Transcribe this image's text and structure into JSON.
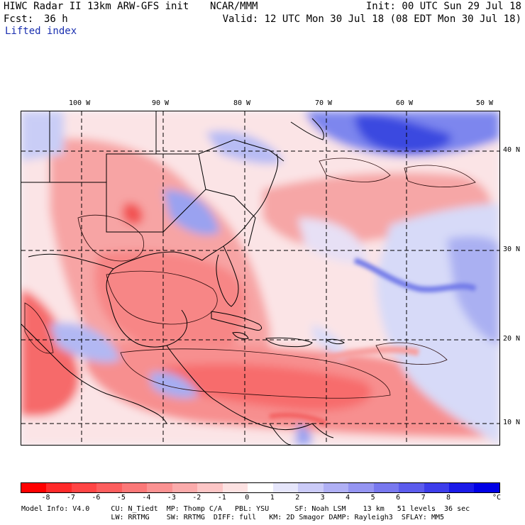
{
  "header": {
    "title": "HIWC Radar II 13km ARW-GFS init",
    "org": "NCAR/MMM",
    "init": "Init: 00 UTC Sun 29 Jul 18",
    "fcst_label": "Fcst:",
    "fcst_value": "36 h",
    "valid": "Valid: 12 UTC Mon 30 Jul 18 (08 EDT Mon 30 Jul 18)",
    "field": "Lifted index"
  },
  "map": {
    "projection": "lat-lon",
    "lon_ticks": [
      "100 W",
      "90 W",
      "80 W",
      "70 W",
      "60 W",
      "50 W"
    ],
    "lat_ticks": [
      "40 N",
      "30 N",
      "20 N",
      "10 N"
    ],
    "colors": {
      "negative_dark": "#ff3c3c",
      "negative_mid": "#f77f7f",
      "negative_light": "#fbc8c8",
      "near_zero": "#fbecef",
      "positive_light": "#d4d7fb",
      "positive_mid": "#8b92f0",
      "positive_dark": "#2b2fe0"
    }
  },
  "colorbar": {
    "unit": "°C",
    "labels": [
      "-8",
      "-7",
      "-6",
      "-5",
      "-4",
      "-3",
      "-2",
      "-1",
      "0",
      "1",
      "2",
      "3",
      "4",
      "5",
      "6",
      "7",
      "8"
    ],
    "colors": [
      "#ff0000",
      "#ff2a2a",
      "#ff4545",
      "#fd5e5e",
      "#fb7878",
      "#fb9292",
      "#fbabab",
      "#fdc6c6",
      "#fde2e2",
      "#ffffff",
      "#e6e6fb",
      "#cbcbf8",
      "#b0b0f5",
      "#9595f2",
      "#7878ef",
      "#5c5ced",
      "#3d3deb",
      "#1a1ae8",
      "#0000e6"
    ]
  },
  "model_info": {
    "line1": "Model Info: V4.0     CU: N_Tiedt  MP: Thomp C/A   PBL: YSU      SF: Noah LSM    13 km   51 levels  36 sec",
    "line2": "                     LW: RRTMG    SW: RRTMG  DIFF: full   KM: 2D Smagor DAMP: Rayleigh3  SFLAY: MM5"
  }
}
